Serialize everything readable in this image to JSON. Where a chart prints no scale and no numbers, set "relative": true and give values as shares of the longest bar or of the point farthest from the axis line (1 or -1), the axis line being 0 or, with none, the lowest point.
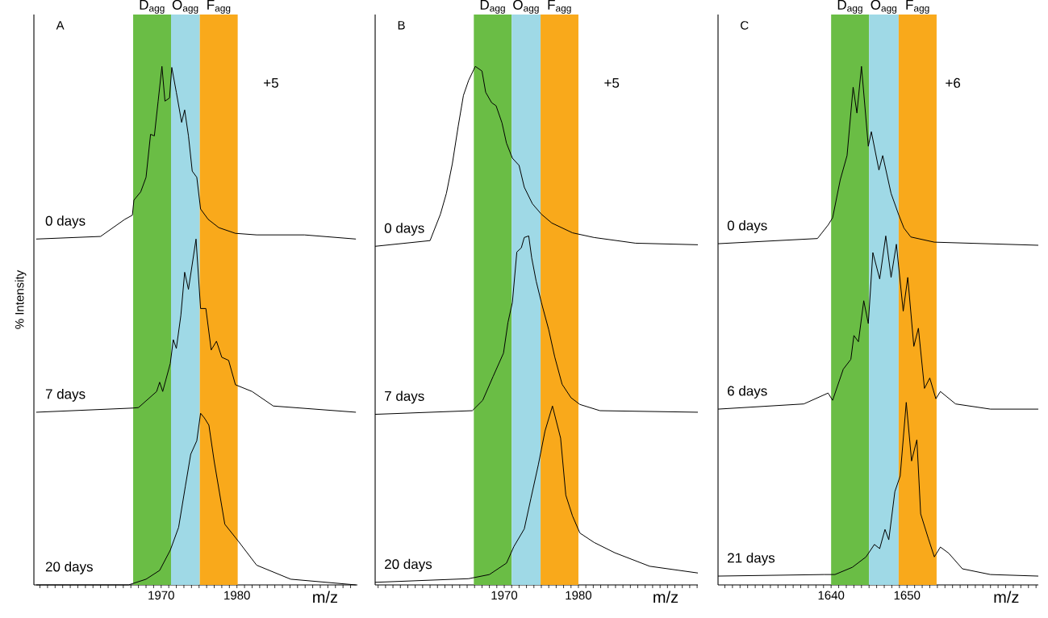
{
  "chart_data": [
    {
      "type": "line",
      "title": "A",
      "ylabel": "% Intensity",
      "xlabel": "m/z",
      "relative": true,
      "tick_labels": "x",
      "xlim": [
        1953.2,
        1995.9
      ],
      "xticks": [
        {
          "value": 1954,
          "label": null
        },
        {
          "value": 1955,
          "label": null
        },
        {
          "value": 1956,
          "label": null
        },
        {
          "value": 1957,
          "label": null
        },
        {
          "value": 1958,
          "label": null
        },
        {
          "value": 1959,
          "label": null
        },
        {
          "value": 1960,
          "label": null
        },
        {
          "value": 1961,
          "label": null
        },
        {
          "value": 1962,
          "label": null
        },
        {
          "value": 1963,
          "label": null
        },
        {
          "value": 1964,
          "label": null
        },
        {
          "value": 1965,
          "label": null
        },
        {
          "value": 1966,
          "label": null
        },
        {
          "value": 1967,
          "label": null
        },
        {
          "value": 1968,
          "label": null
        },
        {
          "value": 1969,
          "label": null
        },
        1970,
        {
          "value": 1971,
          "label": null
        },
        {
          "value": 1972,
          "label": null
        },
        {
          "value": 1973,
          "label": null
        },
        {
          "value": 1974,
          "label": null
        },
        {
          "value": 1975,
          "label": null
        },
        {
          "value": 1976,
          "label": null
        },
        {
          "value": 1977,
          "label": null
        },
        {
          "value": 1978,
          "label": null
        },
        {
          "value": 1979,
          "label": null
        },
        1980,
        {
          "value": 1981,
          "label": null
        },
        {
          "value": 1982,
          "label": null
        },
        {
          "value": 1983,
          "label": null
        },
        {
          "value": 1984,
          "label": null
        },
        {
          "value": 1985,
          "label": null
        },
        {
          "value": 1986,
          "label": null
        },
        {
          "value": 1987,
          "label": null
        },
        {
          "value": 1988,
          "label": null
        },
        {
          "value": 1989,
          "label": null
        },
        {
          "value": 1990,
          "label": null
        },
        {
          "value": 1991,
          "label": null
        },
        {
          "value": 1992,
          "label": null
        },
        {
          "value": 1993,
          "label": null
        },
        {
          "value": 1994,
          "label": null
        },
        {
          "value": 1995,
          "label": null
        }
      ],
      "bands": [
        {
          "axis": "x",
          "from": 1966.3,
          "to": 1971.3,
          "label": "D$_{agg}$",
          "color": "#6abd45"
        },
        {
          "axis": "x",
          "from": 1971.3,
          "to": 1975.1,
          "label": "O$_{agg}$",
          "color": "#9fd9e6"
        },
        {
          "axis": "x",
          "from": 1975.1,
          "to": 1980.1,
          "label": "F$_{agg}$",
          "color": "#f9a91b"
        }
      ],
      "annotations": [
        "+5"
      ],
      "series": [
        {
          "name": "0 days",
          "color": "#000000",
          "x": [
            1953.5,
            1962.0,
            1965.2,
            1966.2,
            1966.4,
            1967.3,
            1968.0,
            1968.6,
            1969.1,
            1969.6,
            1970.1,
            1970.5,
            1971.1,
            1971.4,
            1972.0,
            1972.7,
            1973.1,
            1973.6,
            1974.1,
            1974.7,
            1975.2,
            1976.2,
            1977.6,
            1979.8,
            1982.6,
            1988.9,
            1995.7
          ],
          "values": [
            0.667,
            0.672,
            0.705,
            0.713,
            0.742,
            0.758,
            0.786,
            0.869,
            0.866,
            0.933,
            1.0,
            0.933,
            0.939,
            0.998,
            0.95,
            0.892,
            0.916,
            0.866,
            0.798,
            0.786,
            0.725,
            0.705,
            0.689,
            0.678,
            0.675,
            0.675,
            0.667
          ]
        },
        {
          "name": "7 days",
          "color": "#000000",
          "x": [
            1953.5,
            1966.2,
            1967.0,
            1969.4,
            1969.8,
            1970.2,
            1971.2,
            1971.6,
            1972.0,
            1972.6,
            1973.1,
            1973.6,
            1974.6,
            1975.2,
            1975.9,
            1976.6,
            1977.3,
            1978.0,
            1978.9,
            1979.8,
            1982.0,
            1984.8,
            1995.7
          ],
          "values": [
            0.333,
            0.341,
            0.342,
            0.373,
            0.391,
            0.373,
            0.427,
            0.473,
            0.456,
            0.52,
            0.603,
            0.57,
            0.667,
            0.533,
            0.533,
            0.453,
            0.47,
            0.439,
            0.433,
            0.386,
            0.373,
            0.345,
            0.333
          ]
        },
        {
          "name": "20 days",
          "color": "#000000",
          "x": [
            1953.5,
            1965.7,
            1968.0,
            1969.8,
            1971.2,
            1972.3,
            1973.2,
            1973.9,
            1974.7,
            1975.2,
            1975.7,
            1976.3,
            1977.0,
            1978.4,
            1980.2,
            1982.6,
            1987.1,
            1995.7
          ],
          "values": [
            0.0,
            0.0,
            0.011,
            0.028,
            0.067,
            0.111,
            0.191,
            0.252,
            0.278,
            0.331,
            0.322,
            0.308,
            0.238,
            0.117,
            0.084,
            0.038,
            0.011,
            0.0
          ]
        }
      ]
    },
    {
      "type": "line",
      "title": "B",
      "xlabel": "m/z",
      "relative": true,
      "tick_labels": "x",
      "xlim": [
        1952.6,
        1996.1
      ],
      "xticks": [
        {
          "value": 1953,
          "label": null
        },
        {
          "value": 1954,
          "label": null
        },
        {
          "value": 1955,
          "label": null
        },
        {
          "value": 1956,
          "label": null
        },
        {
          "value": 1957,
          "label": null
        },
        {
          "value": 1958,
          "label": null
        },
        {
          "value": 1959,
          "label": null
        },
        {
          "value": 1960,
          "label": null
        },
        {
          "value": 1961,
          "label": null
        },
        {
          "value": 1962,
          "label": null
        },
        {
          "value": 1963,
          "label": null
        },
        {
          "value": 1964,
          "label": null
        },
        {
          "value": 1965,
          "label": null
        },
        {
          "value": 1966,
          "label": null
        },
        {
          "value": 1967,
          "label": null
        },
        {
          "value": 1968,
          "label": null
        },
        {
          "value": 1969,
          "label": null
        },
        1970,
        {
          "value": 1971,
          "label": null
        },
        {
          "value": 1972,
          "label": null
        },
        {
          "value": 1973,
          "label": null
        },
        {
          "value": 1974,
          "label": null
        },
        {
          "value": 1975,
          "label": null
        },
        {
          "value": 1976,
          "label": null
        },
        {
          "value": 1977,
          "label": null
        },
        {
          "value": 1978,
          "label": null
        },
        {
          "value": 1979,
          "label": null
        },
        1980,
        {
          "value": 1981,
          "label": null
        },
        {
          "value": 1982,
          "label": null
        },
        {
          "value": 1983,
          "label": null
        },
        {
          "value": 1984,
          "label": null
        },
        {
          "value": 1985,
          "label": null
        },
        {
          "value": 1986,
          "label": null
        },
        {
          "value": 1987,
          "label": null
        },
        {
          "value": 1988,
          "label": null
        },
        {
          "value": 1989,
          "label": null
        },
        {
          "value": 1990,
          "label": null
        },
        {
          "value": 1991,
          "label": null
        },
        {
          "value": 1992,
          "label": null
        },
        {
          "value": 1993,
          "label": null
        },
        {
          "value": 1994,
          "label": null
        },
        {
          "value": 1995,
          "label": null
        },
        {
          "value": 1996,
          "label": null
        }
      ],
      "bands": [
        {
          "axis": "x",
          "from": 1965.9,
          "to": 1971.0,
          "label": "D$_{agg}$",
          "color": "#6abd45"
        },
        {
          "axis": "x",
          "from": 1971.0,
          "to": 1974.9,
          "label": "O$_{agg}$",
          "color": "#9fd9e6"
        },
        {
          "axis": "x",
          "from": 1974.9,
          "to": 1980.0,
          "label": "F$_{agg}$",
          "color": "#f9a91b"
        }
      ],
      "annotations": [
        "+5"
      ],
      "series": [
        {
          "name": "0 days",
          "color": "#000000",
          "x": [
            1952.6,
            1960.0,
            1961.4,
            1962.2,
            1963.0,
            1963.8,
            1964.5,
            1965.2,
            1966.1,
            1967.0,
            1967.5,
            1968.3,
            1968.9,
            1969.7,
            1970.3,
            1971.1,
            1972.0,
            1972.7,
            1973.8,
            1975.0,
            1976.4,
            1979.2,
            1982.1,
            1987.7,
            1996.1
          ],
          "values": [
            0.653,
            0.664,
            0.715,
            0.755,
            0.812,
            0.885,
            0.944,
            0.973,
            1.0,
            0.991,
            0.95,
            0.93,
            0.924,
            0.891,
            0.852,
            0.823,
            0.809,
            0.767,
            0.735,
            0.715,
            0.698,
            0.679,
            0.67,
            0.659,
            0.656
          ]
        },
        {
          "name": "7 days",
          "color": "#000000",
          "x": [
            1952.6,
            1965.7,
            1967.1,
            1968.5,
            1969.9,
            1970.5,
            1971.1,
            1971.7,
            1972.3,
            1972.7,
            1973.3,
            1973.7,
            1974.3,
            1975.0,
            1976.0,
            1976.8,
            1977.8,
            1979.0,
            1980.2,
            1982.9,
            1996.1
          ],
          "values": [
            0.329,
            0.336,
            0.356,
            0.402,
            0.447,
            0.506,
            0.545,
            0.642,
            0.65,
            0.67,
            0.673,
            0.631,
            0.586,
            0.545,
            0.492,
            0.44,
            0.387,
            0.361,
            0.348,
            0.336,
            0.333
          ]
        },
        {
          "name": "20 days",
          "color": "#000000",
          "x": [
            1952.6,
            1965.2,
            1968.0,
            1970.3,
            1971.3,
            1972.7,
            1973.6,
            1974.6,
            1975.5,
            1976.5,
            1977.6,
            1978.3,
            1979.2,
            1980.2,
            1982.1,
            1984.9,
            1989.6,
            1996.1
          ],
          "values": [
            0.005,
            0.012,
            0.02,
            0.042,
            0.074,
            0.108,
            0.167,
            0.232,
            0.297,
            0.345,
            0.283,
            0.173,
            0.133,
            0.1,
            0.082,
            0.062,
            0.036,
            0.023
          ]
        }
      ]
    },
    {
      "type": "line",
      "title": "C",
      "xlabel": "m/z",
      "relative": true,
      "tick_labels": "x",
      "xlim": [
        1625.1,
        1667.3
      ],
      "xticks": [
        {
          "value": 1626,
          "label": null
        },
        {
          "value": 1627,
          "label": null
        },
        {
          "value": 1628,
          "label": null
        },
        {
          "value": 1629,
          "label": null
        },
        {
          "value": 1630,
          "label": null
        },
        {
          "value": 1631,
          "label": null
        },
        {
          "value": 1632,
          "label": null
        },
        {
          "value": 1633,
          "label": null
        },
        {
          "value": 1634,
          "label": null
        },
        {
          "value": 1635,
          "label": null
        },
        {
          "value": 1636,
          "label": null
        },
        {
          "value": 1637,
          "label": null
        },
        {
          "value": 1638,
          "label": null
        },
        {
          "value": 1639,
          "label": null
        },
        1640,
        {
          "value": 1641,
          "label": null
        },
        {
          "value": 1642,
          "label": null
        },
        {
          "value": 1643,
          "label": null
        },
        {
          "value": 1644,
          "label": null
        },
        {
          "value": 1645,
          "label": null
        },
        {
          "value": 1646,
          "label": null
        },
        {
          "value": 1647,
          "label": null
        },
        {
          "value": 1648,
          "label": null
        },
        {
          "value": 1649,
          "label": null
        },
        1650,
        {
          "value": 1651,
          "label": null
        },
        {
          "value": 1652,
          "label": null
        },
        {
          "value": 1653,
          "label": null
        },
        {
          "value": 1654,
          "label": null
        },
        {
          "value": 1655,
          "label": null
        },
        {
          "value": 1656,
          "label": null
        },
        {
          "value": 1657,
          "label": null
        },
        {
          "value": 1658,
          "label": null
        },
        {
          "value": 1659,
          "label": null
        },
        {
          "value": 1660,
          "label": null
        },
        {
          "value": 1661,
          "label": null
        },
        {
          "value": 1662,
          "label": null
        },
        {
          "value": 1663,
          "label": null
        },
        {
          "value": 1664,
          "label": null
        },
        {
          "value": 1665,
          "label": null
        },
        {
          "value": 1666,
          "label": null
        },
        {
          "value": 1667,
          "label": null
        }
      ],
      "bands": [
        {
          "axis": "x",
          "from": 1640.0,
          "to": 1645.0,
          "label": "D$_{agg}$",
          "color": "#6abd45"
        },
        {
          "axis": "x",
          "from": 1645.0,
          "to": 1648.9,
          "label": "O$_{agg}$",
          "color": "#9fd9e6"
        },
        {
          "axis": "x",
          "from": 1648.9,
          "to": 1653.9,
          "label": "F$_{agg}$",
          "color": "#f9a91b"
        }
      ],
      "annotations": [
        "+6"
      ],
      "series": [
        {
          "name": "0 days",
          "color": "#000000",
          "x": [
            1625.1,
            1638.2,
            1639.6,
            1640.2,
            1641.2,
            1642.1,
            1642.9,
            1643.4,
            1644.0,
            1644.9,
            1645.3,
            1646.3,
            1646.8,
            1647.9,
            1648.9,
            1649.6,
            1650.5,
            1653.6,
            1667.3
          ],
          "values": [
            0.658,
            0.668,
            0.694,
            0.708,
            0.781,
            0.828,
            0.96,
            0.91,
            1.0,
            0.846,
            0.874,
            0.8,
            0.828,
            0.755,
            0.714,
            0.688,
            0.671,
            0.661,
            0.655
          ]
        },
        {
          "name": "6 days",
          "color": "#000000",
          "x": [
            1625.1,
            1636.4,
            1639.6,
            1640.2,
            1641.6,
            1642.6,
            1643.0,
            1643.6,
            1644.3,
            1644.9,
            1645.5,
            1646.4,
            1647.2,
            1647.9,
            1648.6,
            1649.5,
            1650.1,
            1650.9,
            1651.5,
            1652.3,
            1653.0,
            1653.8,
            1654.4,
            1656.4,
            1661.0,
            1667.3
          ],
          "values": [
            0.339,
            0.349,
            0.37,
            0.356,
            0.416,
            0.435,
            0.481,
            0.469,
            0.548,
            0.504,
            0.641,
            0.59,
            0.673,
            0.593,
            0.657,
            0.528,
            0.593,
            0.46,
            0.495,
            0.379,
            0.399,
            0.359,
            0.373,
            0.349,
            0.339,
            0.339
          ]
        },
        {
          "name": "21 days",
          "color": "#000000",
          "x": [
            1625.1,
            1639.1,
            1640.5,
            1642.8,
            1644.6,
            1645.7,
            1646.4,
            1647.1,
            1647.6,
            1648.4,
            1649.1,
            1649.9,
            1650.6,
            1651.3,
            1651.8,
            1652.8,
            1653.6,
            1654.4,
            1655.5,
            1657.3,
            1661.0,
            1667.3
          ],
          "values": [
            0.017,
            0.02,
            0.02,
            0.034,
            0.054,
            0.078,
            0.07,
            0.107,
            0.087,
            0.18,
            0.21,
            0.352,
            0.239,
            0.28,
            0.137,
            0.09,
            0.054,
            0.073,
            0.061,
            0.031,
            0.02,
            0.017
          ]
        }
      ]
    }
  ]
}
